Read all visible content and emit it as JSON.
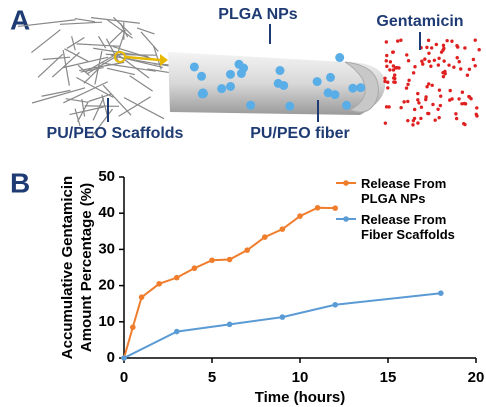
{
  "panel_a": {
    "label": "A",
    "texts": [
      "PLGA NPs",
      "Gentamicin",
      "PU/PEO Scaffolds",
      "PU/PEO fiber"
    ]
  },
  "panel_b": {
    "label": "B"
  },
  "chart_data": {
    "type": "line",
    "xlabel": "Time (hours)",
    "ylabel": [
      "Accumulative Gentamicin",
      "Amount Percentage (%)"
    ],
    "xlim": [
      0,
      20
    ],
    "xticks": [
      0,
      5,
      10,
      15,
      20
    ],
    "ylim": [
      0,
      50
    ],
    "yticks": [
      0,
      10,
      20,
      30,
      40,
      50
    ],
    "legend": "upper right",
    "series": [
      {
        "name": "Release From PLGA NPs",
        "color": "#ef7d2c",
        "x": [
          0,
          0.5,
          1,
          2,
          3,
          4,
          5,
          6,
          7,
          8,
          9,
          10,
          11,
          12
        ],
        "values": [
          0,
          8.5,
          16.8,
          20.5,
          22.2,
          24.8,
          27,
          27.2,
          29.8,
          33.4,
          35.6,
          39.2,
          41.5,
          41.4
        ]
      },
      {
        "name": "Release From Fiber Scaffolds",
        "color": "#5b9bd5",
        "x": [
          0,
          3,
          6,
          9,
          12,
          18
        ],
        "values": [
          0,
          7.3,
          9.3,
          11.3,
          14.7,
          17.9
        ]
      }
    ]
  }
}
